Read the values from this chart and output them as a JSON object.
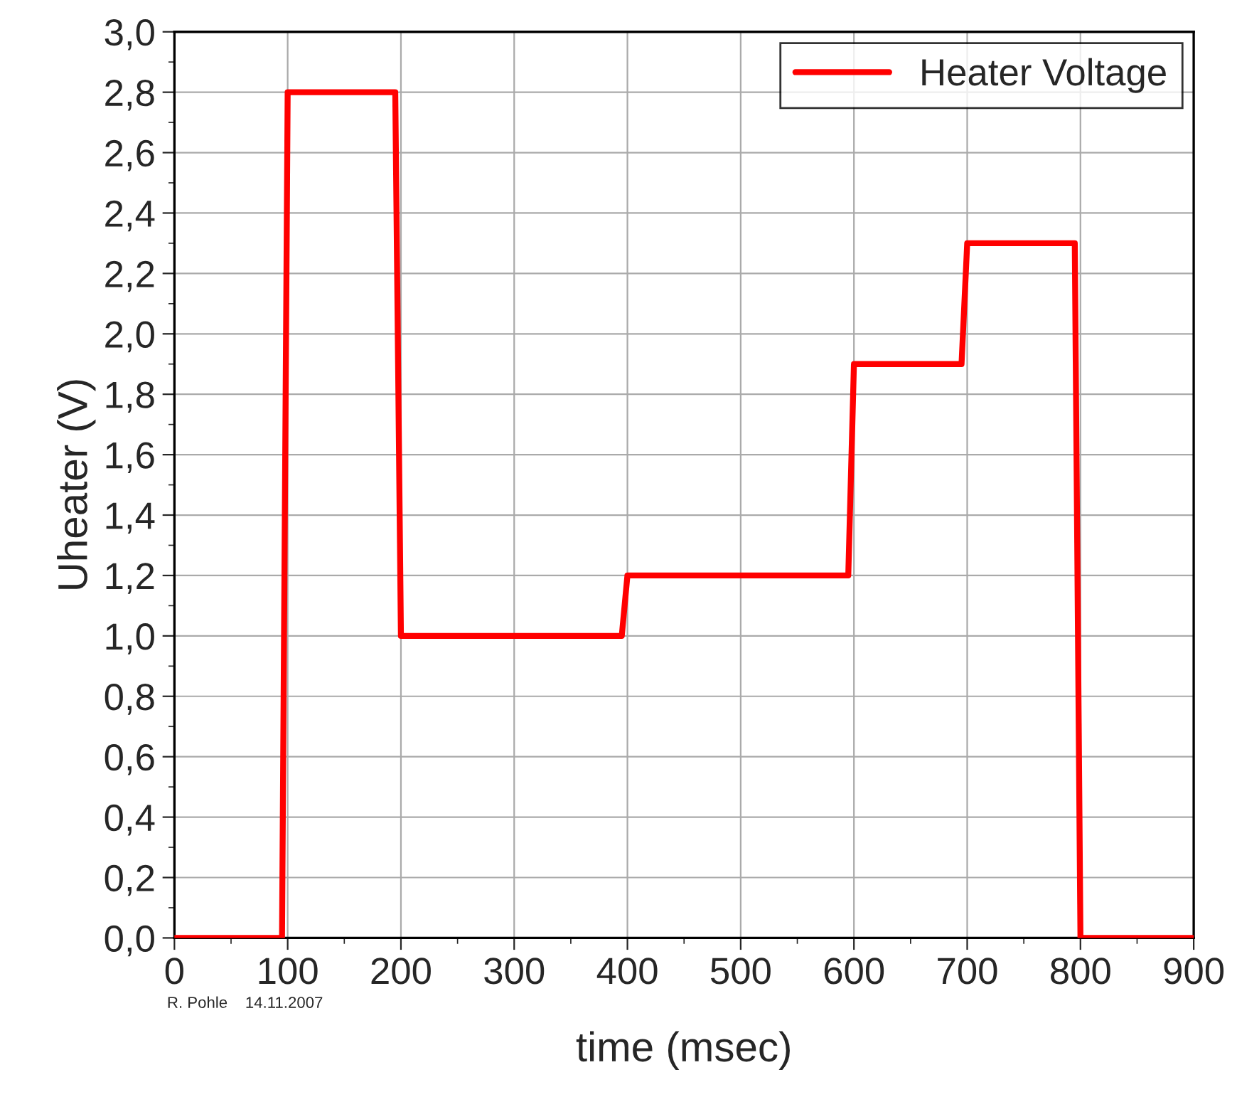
{
  "chart_data": {
    "type": "line",
    "xlabel": "time (msec)",
    "ylabel": "Uheater (V)",
    "series": [
      {
        "name": "Heater Voltage",
        "color": "#ff0000",
        "x": [
          0,
          95,
          100,
          195,
          200,
          395,
          400,
          595,
          600,
          695,
          700,
          795,
          800,
          900
        ],
        "values": [
          0,
          0,
          2.8,
          2.8,
          1.0,
          1.0,
          1.2,
          1.2,
          1.9,
          1.9,
          2.3,
          2.3,
          0,
          0
        ]
      }
    ],
    "xlim": [
      0,
      900
    ],
    "xticks": [
      0,
      100,
      200,
      300,
      400,
      500,
      600,
      700,
      800,
      900
    ],
    "ylim": [
      0,
      3.0
    ],
    "yticks": [
      {
        "value": 0,
        "label": "0,0"
      },
      {
        "value": 0.2,
        "label": "0,2"
      },
      {
        "value": 0.4,
        "label": "0,4"
      },
      {
        "value": 0.6,
        "label": "0,6"
      },
      {
        "value": 0.8,
        "label": "0,8"
      },
      {
        "value": 1.0,
        "label": "1,0"
      },
      {
        "value": 1.2,
        "label": "1,2"
      },
      {
        "value": 1.4,
        "label": "1,4"
      },
      {
        "value": 1.6,
        "label": "1,6"
      },
      {
        "value": 1.8,
        "label": "1,8"
      },
      {
        "value": 2.0,
        "label": "2,0"
      },
      {
        "value": 2.2,
        "label": "2,2"
      },
      {
        "value": 2.4,
        "label": "2,4"
      },
      {
        "value": 2.6,
        "label": "2,6"
      },
      {
        "value": 2.8,
        "label": "2,8"
      },
      {
        "value": 3.0,
        "label": "3,0"
      }
    ],
    "grid": true,
    "legend": "top right",
    "line_style": "solid",
    "marker": "none",
    "annotations": [
      "R. Pohle    14.11.2007"
    ]
  }
}
